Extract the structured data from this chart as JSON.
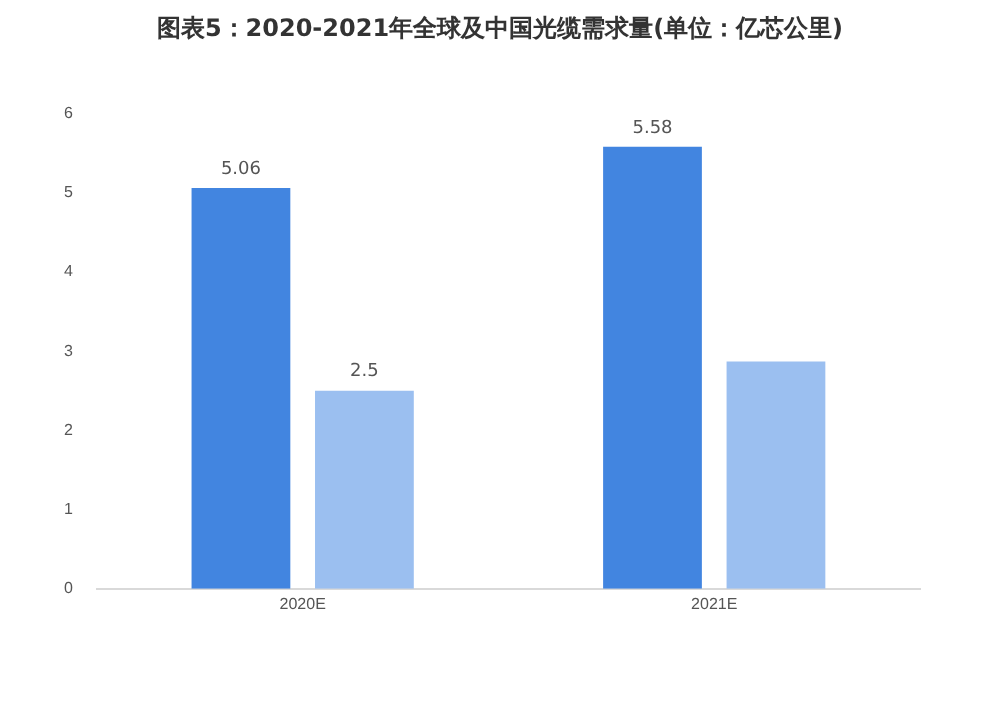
{
  "chart_data": {
    "type": "bar",
    "title": "图表5：2020-2021年全球及中国光缆需求量(单位：亿芯公里)",
    "categories": [
      "2020E",
      "2021E"
    ],
    "series": [
      {
        "color": "#4285e0",
        "values": [
          5.06,
          5.58
        ],
        "value_labels": [
          "5.06",
          "5.58"
        ]
      },
      {
        "color": "#9bbff0",
        "values": [
          2.5,
          2.87
        ],
        "value_labels": [
          "2.5",
          null
        ]
      }
    ],
    "ylim": [
      0,
      6
    ],
    "yticks": [
      0,
      1,
      2,
      3,
      4,
      5,
      6
    ],
    "grid": false
  }
}
